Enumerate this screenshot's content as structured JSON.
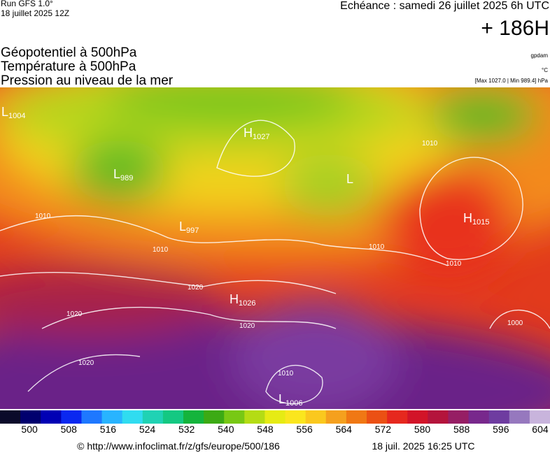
{
  "header": {
    "model": "Run GFS 1.0°",
    "run": "18 juillet 2025 12Z",
    "forecast": "Echéance : samedi 26 juillet 2025 6h UTC",
    "lead": "+ 186H"
  },
  "layers": [
    "Géopotentiel à 500hPa",
    "Température à 500hPa",
    "Pression au niveau de la mer"
  ],
  "units": [
    "gpdam",
    "°C",
    "[Max 1027.0 | Min 989.4] hPa"
  ],
  "centers": [
    {
      "kind": "L",
      "value": "1004"
    },
    {
      "kind": "H",
      "value": "1027"
    },
    {
      "kind": "L",
      "value": "989"
    },
    {
      "kind": "L",
      "value": "997"
    },
    {
      "kind": "L"
    },
    {
      "kind": "H",
      "value": "1015"
    },
    {
      "kind": "H",
      "value": "1026"
    },
    {
      "kind": "L",
      "value": "1006"
    }
  ],
  "isobar_labels": [
    "1010",
    "1010",
    "1010",
    "1010",
    "1010",
    "1010",
    "1020",
    "1020",
    "1020",
    "1020",
    "1000"
  ],
  "colorbar": {
    "range": [
      494,
      606
    ],
    "ticks": [
      500,
      508,
      516,
      524,
      532,
      540,
      548,
      556,
      564,
      572,
      580,
      588,
      596,
      604
    ],
    "colors": [
      "#0a0a2a",
      "#00006e",
      "#0000b4",
      "#0a28f0",
      "#1e78ff",
      "#28b4ff",
      "#30dcf0",
      "#20d2b4",
      "#14c882",
      "#14b43c",
      "#3caa14",
      "#78c814",
      "#b4dc14",
      "#e6eb14",
      "#fae61e",
      "#fac81e",
      "#f5a01e",
      "#f07814",
      "#eb5014",
      "#e6281e",
      "#d21428",
      "#b4143c",
      "#961e64",
      "#78288c",
      "#6e3ca0",
      "#9678be",
      "#c8b4dc"
    ]
  },
  "footer": {
    "url": "© http://www.infoclimat.fr/z/gfs/europe/500/186",
    "timestamp": "18 juil. 2025 16:25 UTC"
  }
}
